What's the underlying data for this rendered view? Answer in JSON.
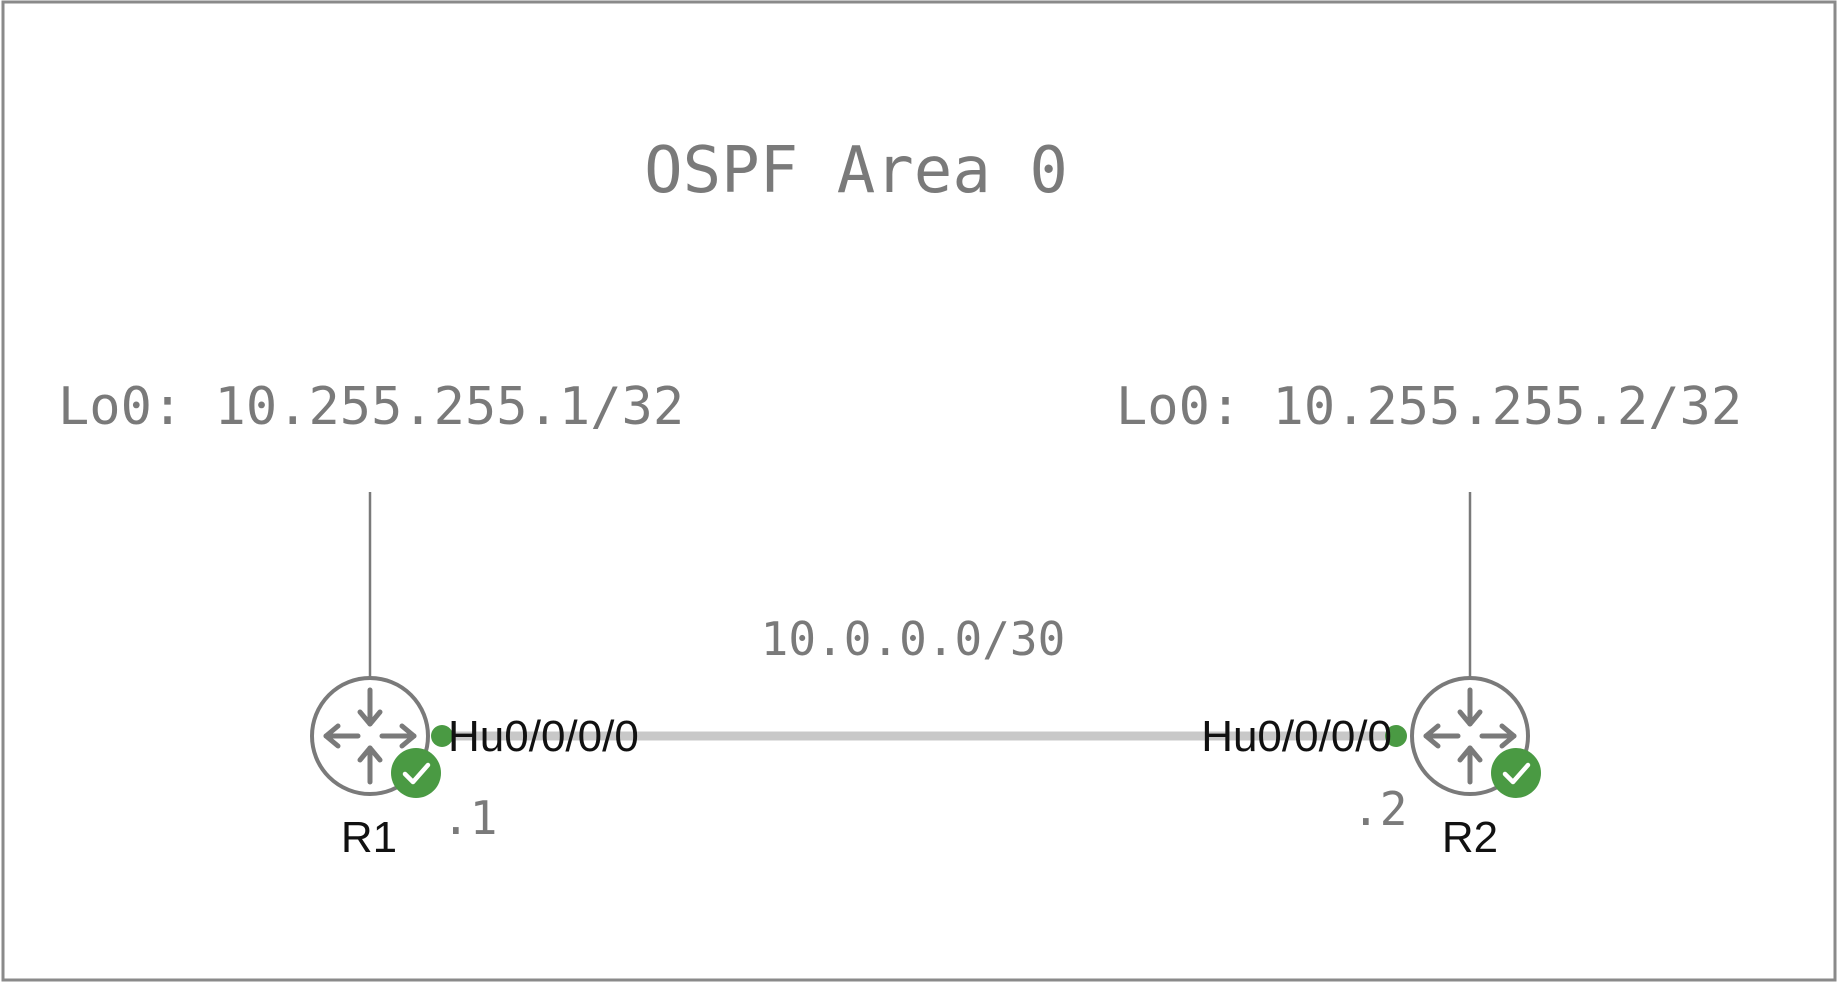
{
  "title": "OSPF Area 0",
  "colors": {
    "frame": "#8a8a8a",
    "text_gray": "#7a7a7a",
    "link": "#c8c8c8",
    "status_green": "#4a9a43",
    "router_stroke": "#7a7a7a"
  },
  "routers": [
    {
      "name": "R1",
      "loopback": "Lo0: 10.255.255.1/32",
      "interface": "Hu0/0/0/0",
      "host_octet": ".1",
      "status_icon": "check-icon",
      "device_icon": "router-icon"
    },
    {
      "name": "R2",
      "loopback": "Lo0: 10.255.255.2/32",
      "interface": "Hu0/0/0/0",
      "host_octet": ".2",
      "status_icon": "check-icon",
      "device_icon": "router-icon"
    }
  ],
  "link": {
    "subnet": "10.0.0.0/30"
  }
}
